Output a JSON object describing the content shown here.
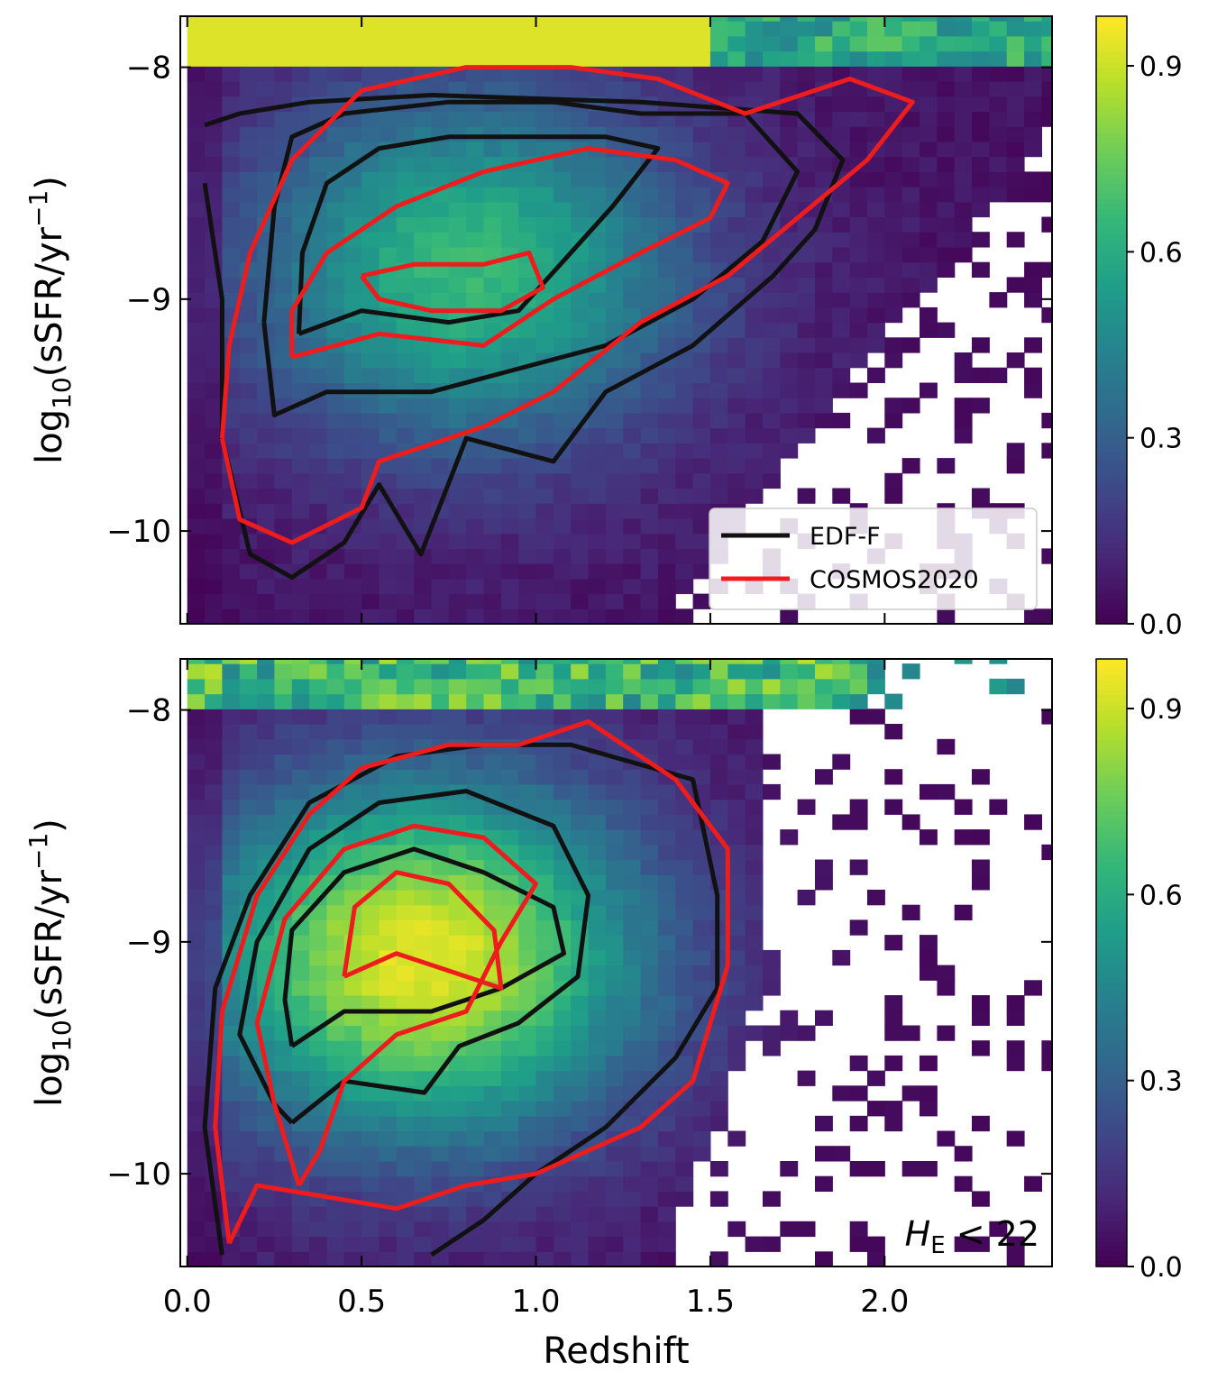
{
  "chart_data": [
    {
      "type": "heatmap",
      "panel": "top",
      "xlabel": "",
      "ylabel_main": "log",
      "ylabel_sub": "10",
      "ylabel_rest": "(sSFR/yr",
      "ylabel_sup": "−1",
      "ylabel_close": ")",
      "xlim": [
        -0.02,
        2.48
      ],
      "ylim": [
        -10.4,
        -7.78
      ],
      "yticks": [
        {
          "value": -8,
          "label": "−8"
        },
        {
          "value": -9,
          "label": "−9"
        },
        {
          "value": -10,
          "label": "−10"
        }
      ],
      "colorbar": {
        "ticks": [
          {
            "value": 0.9,
            "label": "0.9"
          },
          {
            "value": 0.6,
            "label": "0.6"
          },
          {
            "value": 0.3,
            "label": "0.3"
          },
          {
            "value": 0.0,
            "label": "0.0"
          }
        ],
        "range": [
          0.0,
          0.98
        ],
        "colormap": "viridis"
      },
      "density_peak": {
        "x": 0.78,
        "y": -8.9
      },
      "legend": {
        "position": "lower-right",
        "entries": [
          {
            "label": "EDF-F",
            "color": "#111111"
          },
          {
            "label": "COSMOS2020",
            "color": "#ee1c1c"
          }
        ]
      },
      "contours": [
        {
          "series": "EDF-F",
          "level": "outer",
          "points": [
            [
              0.05,
              -8.5
            ],
            [
              0.1,
              -9.0
            ],
            [
              0.1,
              -9.6
            ],
            [
              0.18,
              -10.1
            ],
            [
              0.3,
              -10.2
            ],
            [
              0.45,
              -10.05
            ],
            [
              0.55,
              -9.8
            ],
            [
              0.67,
              -10.1
            ],
            [
              0.8,
              -9.6
            ],
            [
              1.05,
              -9.7
            ],
            [
              1.2,
              -9.4
            ],
            [
              1.45,
              -9.2
            ],
            [
              1.68,
              -8.9
            ],
            [
              1.8,
              -8.7
            ],
            [
              1.88,
              -8.4
            ],
            [
              1.75,
              -8.2
            ],
            [
              1.3,
              -8.15
            ],
            [
              0.7,
              -8.12
            ],
            [
              0.35,
              -8.15
            ],
            [
              0.15,
              -8.2
            ],
            [
              0.05,
              -8.25
            ]
          ]
        },
        {
          "series": "EDF-F",
          "level": "mid",
          "points": [
            [
              0.22,
              -9.1
            ],
            [
              0.25,
              -9.5
            ],
            [
              0.4,
              -9.4
            ],
            [
              0.7,
              -9.4
            ],
            [
              0.95,
              -9.3
            ],
            [
              1.2,
              -9.2
            ],
            [
              1.45,
              -9.0
            ],
            [
              1.65,
              -8.75
            ],
            [
              1.75,
              -8.45
            ],
            [
              1.6,
              -8.2
            ],
            [
              1.3,
              -8.2
            ],
            [
              1.05,
              -8.15
            ],
            [
              0.75,
              -8.15
            ],
            [
              0.45,
              -8.2
            ],
            [
              0.3,
              -8.3
            ],
            [
              0.25,
              -8.6
            ],
            [
              0.22,
              -9.1
            ]
          ]
        },
        {
          "series": "EDF-F",
          "level": "inner",
          "points": [
            [
              0.32,
              -9.15
            ],
            [
              0.5,
              -9.05
            ],
            [
              0.75,
              -9.1
            ],
            [
              0.95,
              -9.05
            ],
            [
              1.1,
              -8.8
            ],
            [
              1.22,
              -8.6
            ],
            [
              1.35,
              -8.35
            ],
            [
              1.2,
              -8.3
            ],
            [
              1.0,
              -8.3
            ],
            [
              0.75,
              -8.3
            ],
            [
              0.55,
              -8.35
            ],
            [
              0.4,
              -8.5
            ],
            [
              0.33,
              -8.8
            ],
            [
              0.32,
              -9.15
            ]
          ]
        },
        {
          "series": "COSMOS2020",
          "level": "outer",
          "points": [
            [
              0.1,
              -9.6
            ],
            [
              0.15,
              -9.95
            ],
            [
              0.3,
              -10.05
            ],
            [
              0.5,
              -9.9
            ],
            [
              0.55,
              -9.7
            ],
            [
              0.85,
              -9.55
            ],
            [
              1.05,
              -9.4
            ],
            [
              1.3,
              -9.1
            ],
            [
              1.55,
              -8.9
            ],
            [
              1.75,
              -8.65
            ],
            [
              1.95,
              -8.4
            ],
            [
              2.08,
              -8.15
            ],
            [
              1.9,
              -8.05
            ],
            [
              1.6,
              -8.2
            ],
            [
              1.35,
              -8.05
            ],
            [
              1.1,
              -8.0
            ],
            [
              0.8,
              -8.0
            ],
            [
              0.5,
              -8.1
            ],
            [
              0.3,
              -8.4
            ],
            [
              0.18,
              -8.8
            ],
            [
              0.12,
              -9.2
            ],
            [
              0.1,
              -9.6
            ]
          ]
        },
        {
          "series": "COSMOS2020",
          "level": "mid",
          "points": [
            [
              0.3,
              -9.25
            ],
            [
              0.55,
              -9.15
            ],
            [
              0.85,
              -9.2
            ],
            [
              1.05,
              -9.0
            ],
            [
              1.3,
              -8.8
            ],
            [
              1.5,
              -8.65
            ],
            [
              1.55,
              -8.5
            ],
            [
              1.4,
              -8.4
            ],
            [
              1.15,
              -8.35
            ],
            [
              0.85,
              -8.45
            ],
            [
              0.6,
              -8.6
            ],
            [
              0.4,
              -8.8
            ],
            [
              0.3,
              -9.05
            ],
            [
              0.3,
              -9.25
            ]
          ]
        },
        {
          "series": "COSMOS2020",
          "level": "inner",
          "points": [
            [
              0.5,
              -8.9
            ],
            [
              0.65,
              -8.85
            ],
            [
              0.85,
              -8.85
            ],
            [
              0.98,
              -8.8
            ],
            [
              1.02,
              -8.95
            ],
            [
              0.9,
              -9.05
            ],
            [
              0.7,
              -9.05
            ],
            [
              0.55,
              -9.0
            ],
            [
              0.5,
              -8.9
            ]
          ]
        }
      ]
    },
    {
      "type": "heatmap",
      "panel": "bottom",
      "xlabel": "Redshift",
      "ylabel_main": "log",
      "ylabel_sub": "10",
      "ylabel_rest": "(sSFR/yr",
      "ylabel_sup": "−1",
      "ylabel_close": ")",
      "xlim": [
        -0.02,
        2.48
      ],
      "ylim": [
        -10.4,
        -7.78
      ],
      "xticks": [
        {
          "value": 0.0,
          "label": "0.0"
        },
        {
          "value": 0.5,
          "label": "0.5"
        },
        {
          "value": 1.0,
          "label": "1.0"
        },
        {
          "value": 1.5,
          "label": "1.5"
        },
        {
          "value": 2.0,
          "label": "2.0"
        }
      ],
      "yticks": [
        {
          "value": -8,
          "label": "−8"
        },
        {
          "value": -9,
          "label": "−9"
        },
        {
          "value": -10,
          "label": "−10"
        }
      ],
      "colorbar": {
        "ticks": [
          {
            "value": 0.9,
            "label": "0.9"
          },
          {
            "value": 0.6,
            "label": "0.6"
          },
          {
            "value": 0.3,
            "label": "0.3"
          },
          {
            "value": 0.0,
            "label": "0.0"
          }
        ],
        "range": [
          0.0,
          0.98
        ],
        "colormap": "viridis"
      },
      "density_peak": {
        "x": 0.65,
        "y": -9.1
      },
      "annotation": {
        "main": "H",
        "sub": "E",
        "rest": " < 22",
        "position": "bottom-right"
      },
      "contours": [
        {
          "series": "EDF-F",
          "level": "outer",
          "points": [
            [
              0.1,
              -10.35
            ],
            [
              0.05,
              -9.8
            ],
            [
              0.08,
              -9.2
            ],
            [
              0.18,
              -8.8
            ],
            [
              0.35,
              -8.4
            ],
            [
              0.6,
              -8.2
            ],
            [
              0.85,
              -8.15
            ],
            [
              1.1,
              -8.15
            ],
            [
              1.45,
              -8.3
            ],
            [
              1.52,
              -8.8
            ],
            [
              1.52,
              -9.2
            ],
            [
              1.4,
              -9.5
            ],
            [
              1.2,
              -9.8
            ],
            [
              1.0,
              -10.0
            ],
            [
              0.85,
              -10.2
            ],
            [
              0.7,
              -10.35
            ]
          ]
        },
        {
          "series": "EDF-F",
          "level": "mid",
          "points": [
            [
              0.3,
              -9.78
            ],
            [
              0.45,
              -9.6
            ],
            [
              0.68,
              -9.65
            ],
            [
              0.78,
              -9.45
            ],
            [
              0.95,
              -9.35
            ],
            [
              1.12,
              -9.15
            ],
            [
              1.15,
              -8.8
            ],
            [
              1.05,
              -8.5
            ],
            [
              0.8,
              -8.35
            ],
            [
              0.55,
              -8.4
            ],
            [
              0.35,
              -8.6
            ],
            [
              0.2,
              -9.0
            ],
            [
              0.15,
              -9.4
            ],
            [
              0.25,
              -9.7
            ],
            [
              0.3,
              -9.78
            ]
          ]
        },
        {
          "series": "EDF-F",
          "level": "inner",
          "points": [
            [
              0.3,
              -9.45
            ],
            [
              0.45,
              -9.3
            ],
            [
              0.7,
              -9.3
            ],
            [
              0.9,
              -9.2
            ],
            [
              1.08,
              -9.05
            ],
            [
              1.05,
              -8.85
            ],
            [
              0.85,
              -8.7
            ],
            [
              0.65,
              -8.6
            ],
            [
              0.45,
              -8.7
            ],
            [
              0.3,
              -8.95
            ],
            [
              0.28,
              -9.25
            ],
            [
              0.3,
              -9.45
            ]
          ]
        },
        {
          "series": "COSMOS2020",
          "level": "outer",
          "points": [
            [
              0.12,
              -10.3
            ],
            [
              0.08,
              -9.8
            ],
            [
              0.1,
              -9.3
            ],
            [
              0.2,
              -8.8
            ],
            [
              0.35,
              -8.45
            ],
            [
              0.5,
              -8.25
            ],
            [
              0.75,
              -8.15
            ],
            [
              0.95,
              -8.15
            ],
            [
              1.15,
              -8.05
            ],
            [
              1.4,
              -8.3
            ],
            [
              1.55,
              -8.6
            ],
            [
              1.55,
              -9.1
            ],
            [
              1.45,
              -9.6
            ],
            [
              1.3,
              -9.8
            ],
            [
              1.0,
              -10.0
            ],
            [
              0.8,
              -10.05
            ],
            [
              0.6,
              -10.15
            ],
            [
              0.4,
              -10.1
            ],
            [
              0.2,
              -10.05
            ],
            [
              0.12,
              -10.3
            ]
          ]
        },
        {
          "series": "COSMOS2020",
          "level": "mid",
          "points": [
            [
              0.32,
              -10.05
            ],
            [
              0.25,
              -9.7
            ],
            [
              0.2,
              -9.35
            ],
            [
              0.28,
              -8.9
            ],
            [
              0.45,
              -8.6
            ],
            [
              0.65,
              -8.5
            ],
            [
              0.85,
              -8.55
            ],
            [
              1.0,
              -8.75
            ],
            [
              0.9,
              -9.0
            ],
            [
              0.8,
              -9.3
            ],
            [
              0.6,
              -9.4
            ],
            [
              0.45,
              -9.6
            ],
            [
              0.38,
              -9.9
            ],
            [
              0.32,
              -10.05
            ]
          ]
        },
        {
          "series": "COSMOS2020",
          "level": "inner",
          "points": [
            [
              0.45,
              -9.15
            ],
            [
              0.6,
              -9.05
            ],
            [
              0.8,
              -9.15
            ],
            [
              0.9,
              -9.2
            ],
            [
              0.88,
              -8.95
            ],
            [
              0.75,
              -8.75
            ],
            [
              0.6,
              -8.7
            ],
            [
              0.48,
              -8.85
            ],
            [
              0.45,
              -9.15
            ]
          ]
        }
      ]
    }
  ]
}
